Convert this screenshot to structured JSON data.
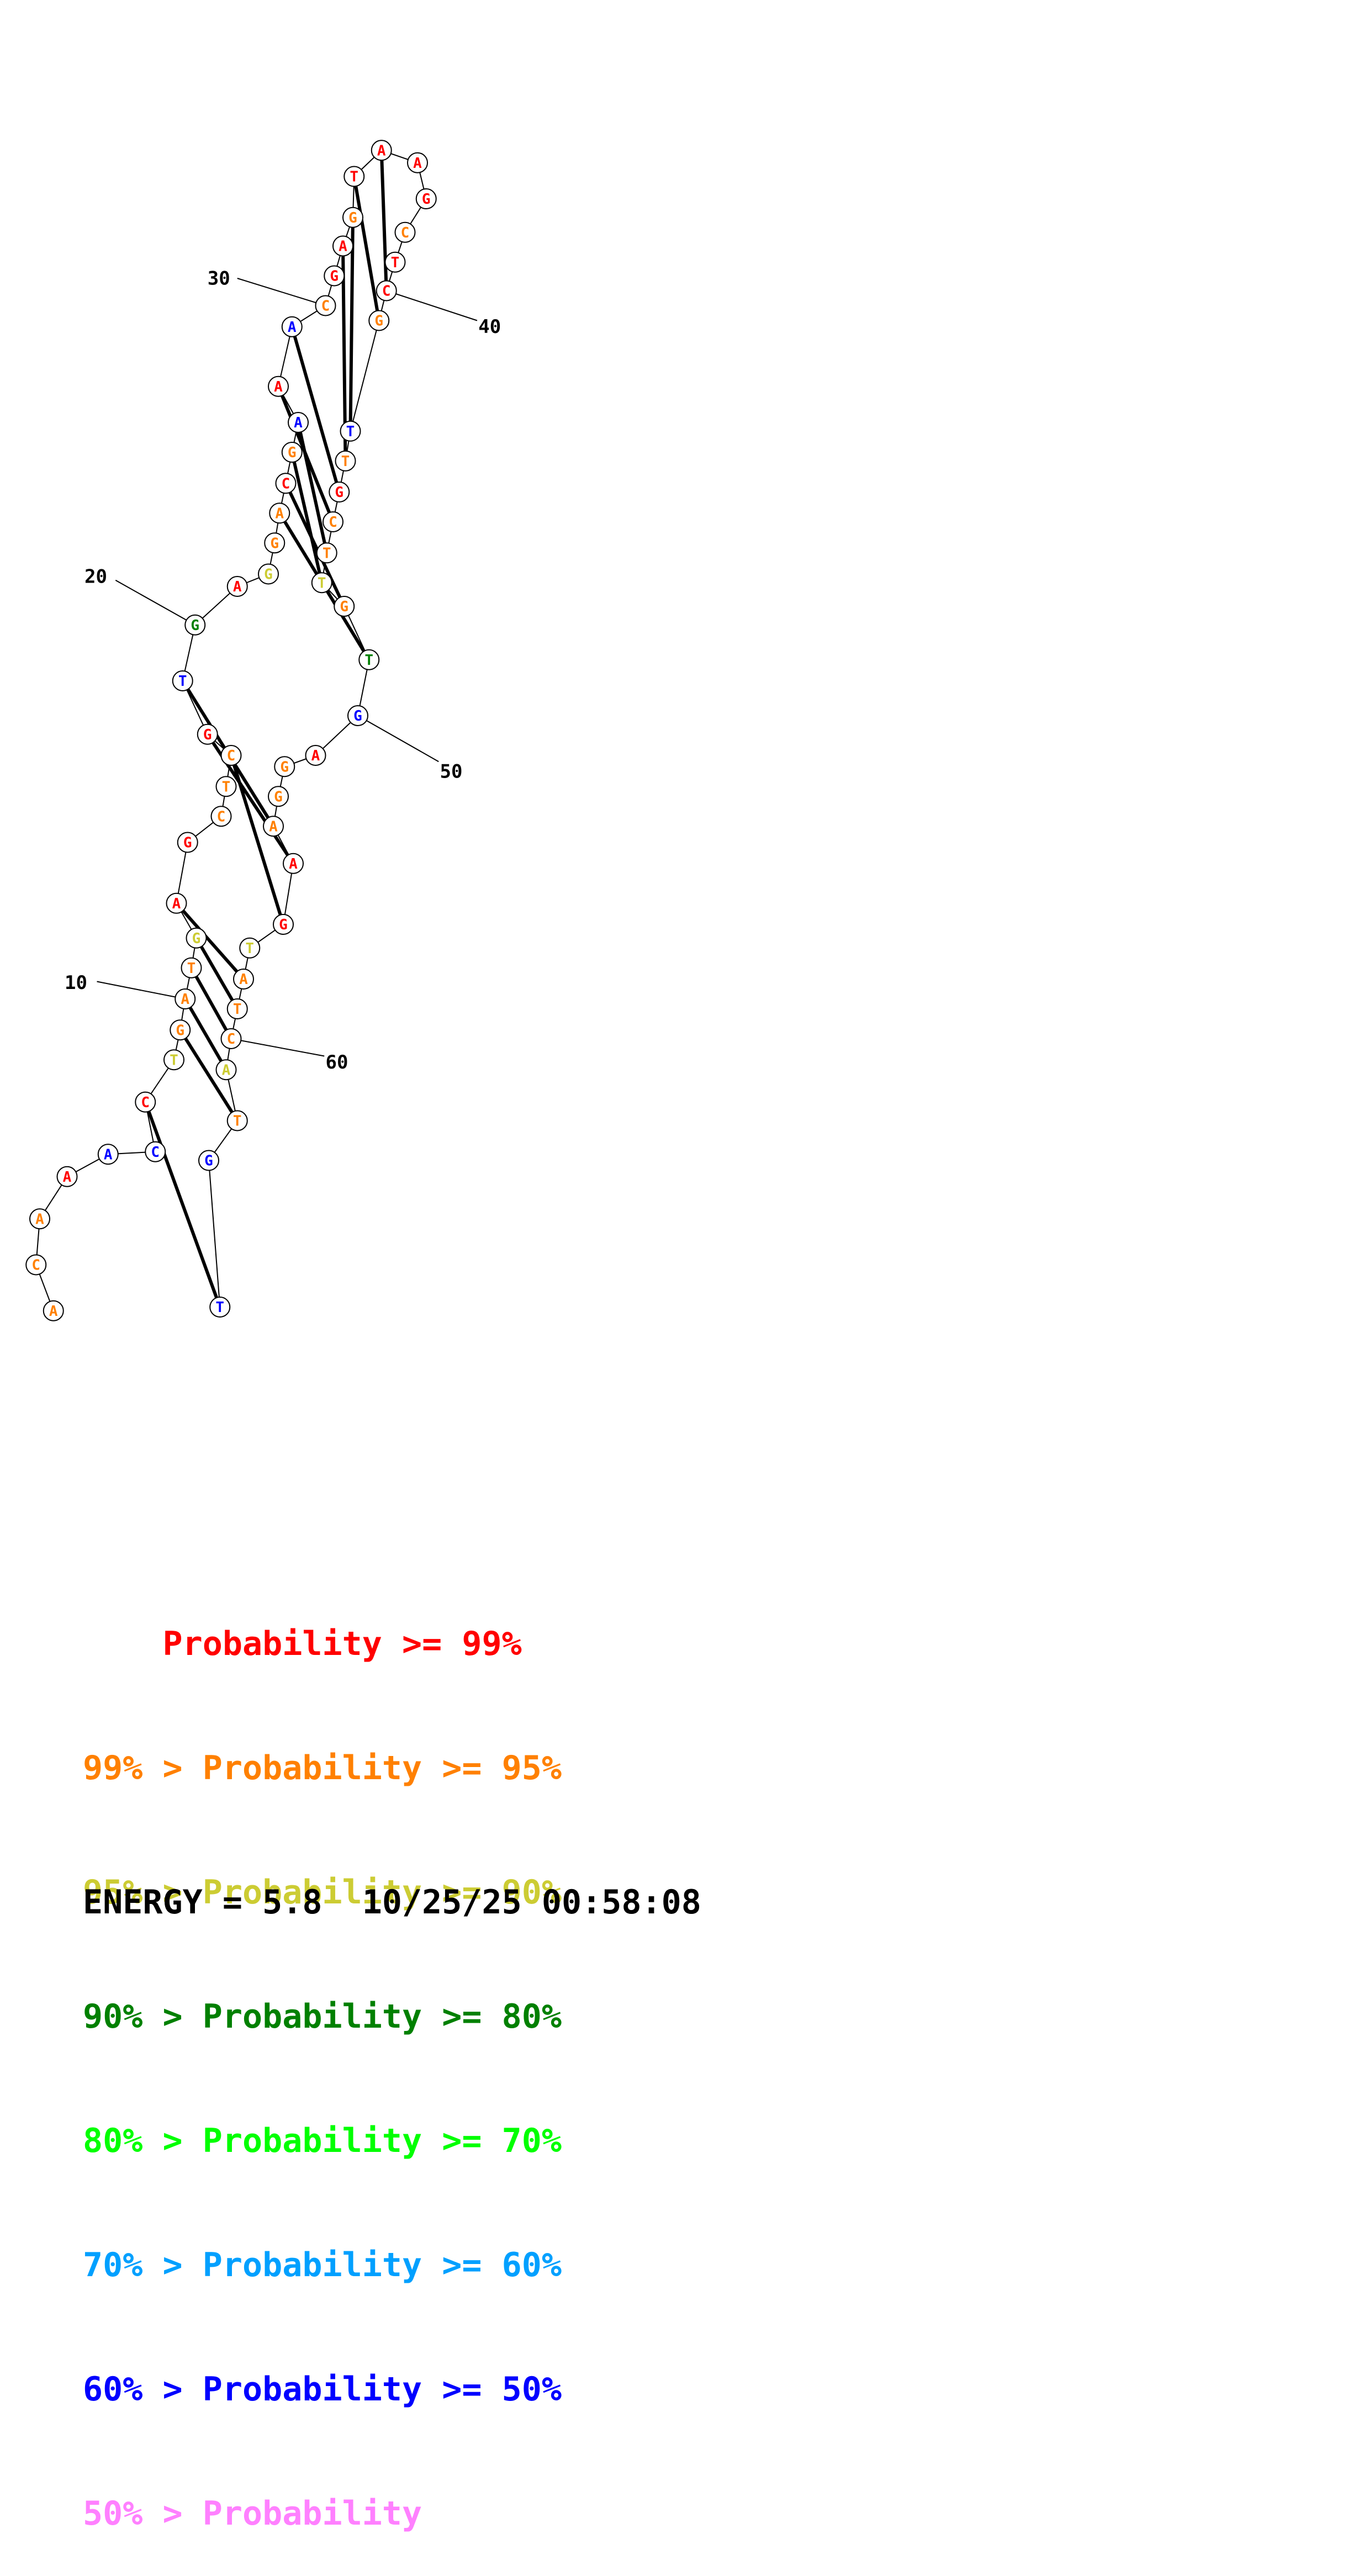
{
  "structure": {
    "sequence": [
      "A",
      "C",
      "A",
      "A",
      "A",
      "C",
      "C",
      "T",
      "G",
      "A",
      "T",
      "G",
      "A",
      "G",
      "C",
      "T",
      "C",
      "G",
      "T",
      "G",
      "A",
      "G",
      "G",
      "A",
      "C",
      "G",
      "A",
      "A",
      "A",
      "C",
      "G",
      "A",
      "G",
      "T",
      "A",
      "A",
      "G",
      "C",
      "T",
      "C",
      "G",
      "T",
      "T",
      "G",
      "C",
      "T",
      "T",
      "G",
      "T",
      "G",
      "A",
      "G",
      "G",
      "A",
      "A",
      "G",
      "T",
      "A",
      "T",
      "C",
      "A",
      "T",
      "G",
      "T"
    ],
    "colors": [
      "#ff8000",
      "#ff8000",
      "#ff8000",
      "#ff0000",
      "#0000ff",
      "#0000ff",
      "#ff0000",
      "#cccc33",
      "#ff8000",
      "#ff8000",
      "#ff8000",
      "#cccc33",
      "#ff0000",
      "#ff0000",
      "#ff8000",
      "#ff8000",
      "#ff8000",
      "#ff0000",
      "#0000ff",
      "#008000",
      "#ff0000",
      "#cccc33",
      "#ff8000",
      "#ff8000",
      "#ff0000",
      "#ff8000",
      "#0000ff",
      "#ff0000",
      "#0000ff",
      "#ff8000",
      "#ff0000",
      "#ff0000",
      "#ff8000",
      "#ff0000",
      "#ff0000",
      "#ff0000",
      "#ff0000",
      "#ff8000",
      "#ff0000",
      "#ff0000",
      "#ff8000",
      "#0000ff",
      "#ff8000",
      "#ff0000",
      "#ff8000",
      "#ff8000",
      "#cccc33",
      "#ff8000",
      "#008000",
      "#0000ff",
      "#ff0000",
      "#ff8000",
      "#ff8000",
      "#ff8000",
      "#ff0000",
      "#ff0000",
      "#cccc33",
      "#ff8000",
      "#ff8000",
      "#ff8000",
      "#cccc33",
      "#ff8000",
      "#0000ff",
      "#0000ff"
    ],
    "pairs": [
      [
        6,
        63
      ],
      [
        8,
        61
      ],
      [
        9,
        60
      ],
      [
        10,
        59
      ],
      [
        11,
        58
      ],
      [
        12,
        57
      ],
      [
        16,
        55
      ],
      [
        17,
        54
      ],
      [
        18,
        53
      ],
      [
        23,
        48
      ],
      [
        24,
        47
      ],
      [
        25,
        46
      ],
      [
        26,
        45
      ],
      [
        27,
        44
      ],
      [
        28,
        43
      ],
      [
        31,
        42
      ],
      [
        32,
        41
      ],
      [
        33,
        40
      ],
      [
        34,
        39
      ]
    ],
    "position_labels": [
      "10",
      "20",
      "30",
      "40",
      "50",
      "60"
    ]
  },
  "legend": [
    {
      "prefix": "    ",
      "label": "Probability >= 99%",
      "color": "#ff0000"
    },
    {
      "prefix": "99% > ",
      "label": "Probability >= 95%",
      "color": "#ff8000"
    },
    {
      "prefix": "95% > ",
      "label": "Probability >= 90%",
      "color": "#cccc33"
    },
    {
      "prefix": "90% > ",
      "label": "Probability >= 80%",
      "color": "#008000"
    },
    {
      "prefix": "80% > ",
      "label": "Probability >= 70%",
      "color": "#00ff00"
    },
    {
      "prefix": "70% > ",
      "label": "Probability >= 60%",
      "color": "#00a0ff"
    },
    {
      "prefix": "60% > ",
      "label": "Probability >= 50%",
      "color": "#0000ff"
    },
    {
      "prefix": "50% > ",
      "label": "Probability",
      "color": "#ff80ff"
    }
  ],
  "footer": {
    "energy_text": "ENERGY = 5.8  10/25/25 00:58:08"
  }
}
